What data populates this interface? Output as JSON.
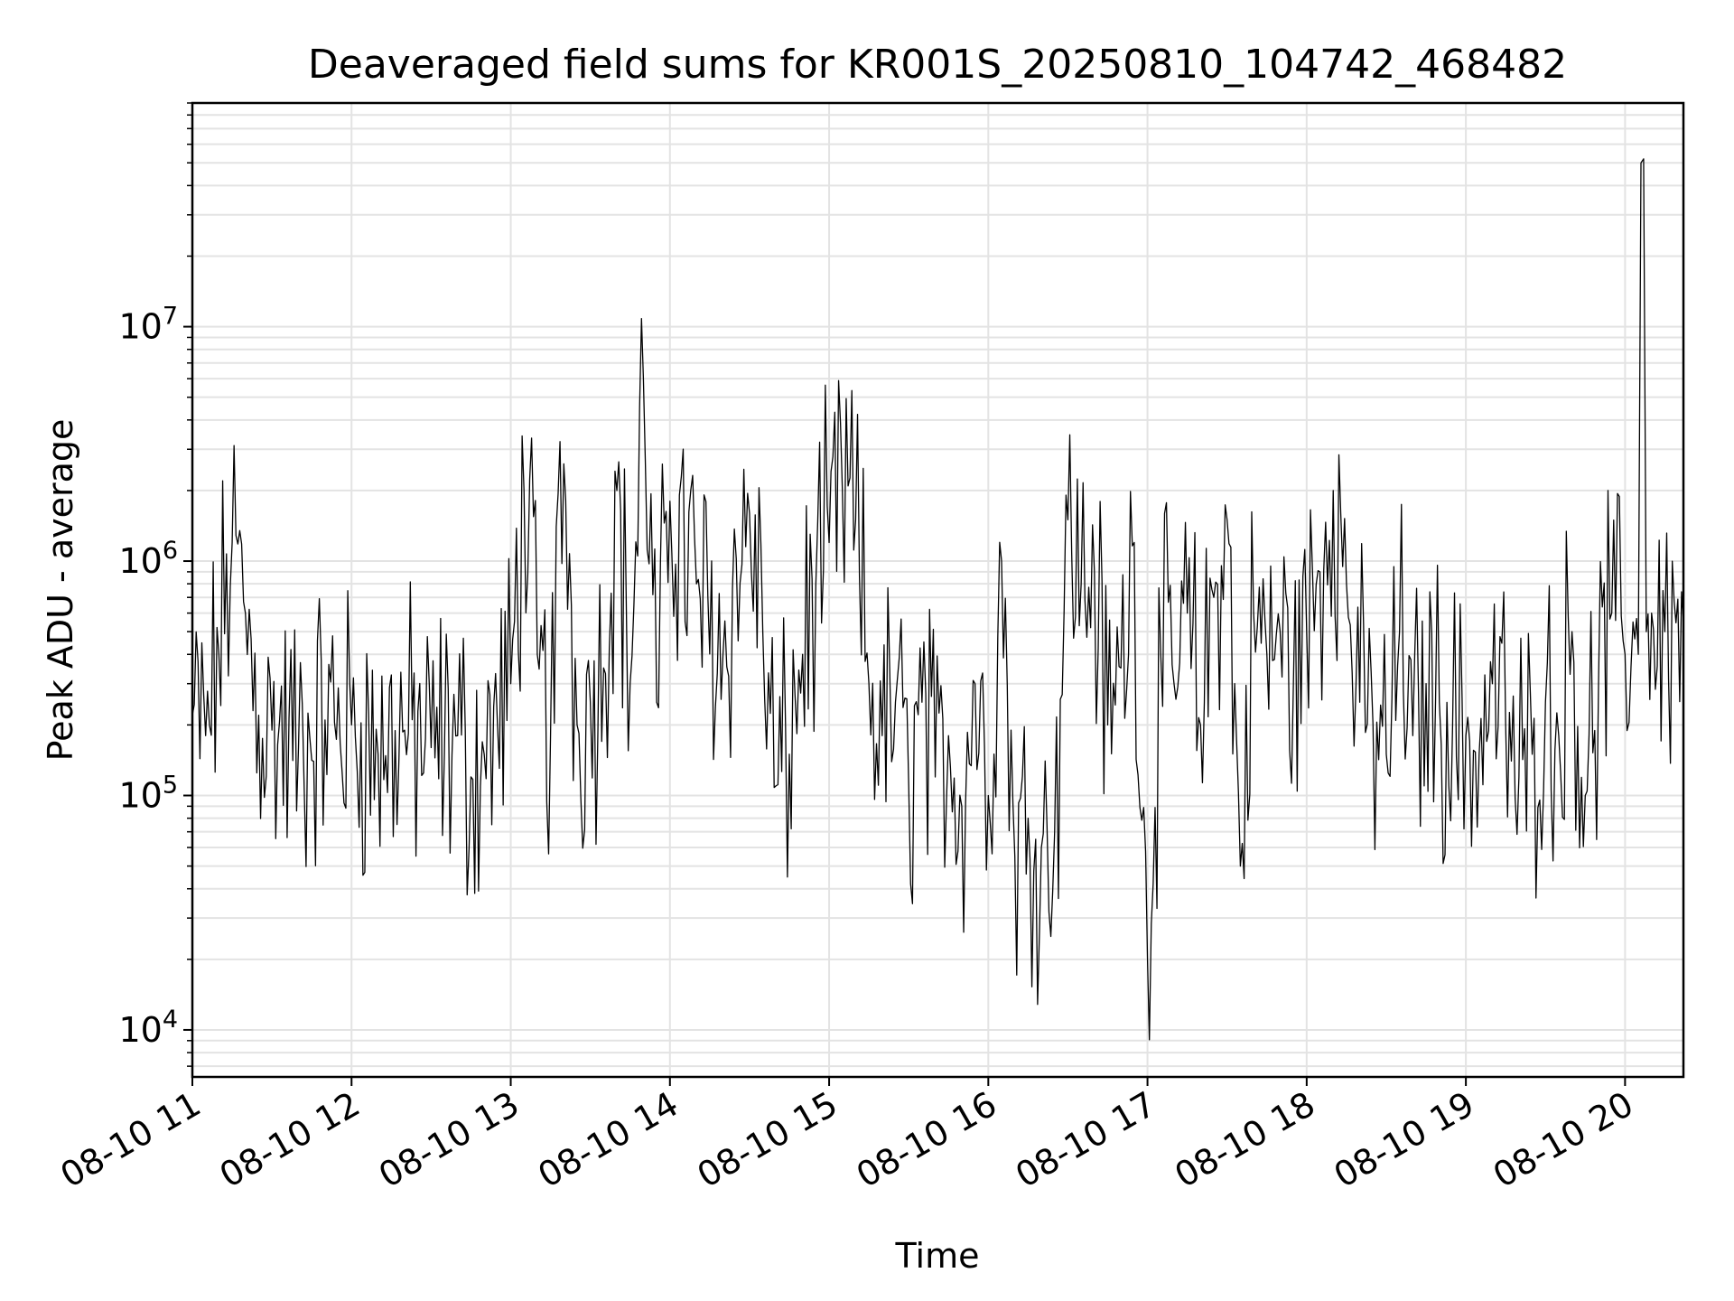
{
  "chart_data": {
    "type": "line",
    "title": "Deaveraged field sums for KR001S_20250810_104742_468482",
    "xlabel": "Time",
    "ylabel": "Peak ADU - average",
    "yscale": "log",
    "ylim": [
      6300,
      90000000
    ],
    "xlim": [
      "2025-08-10 11:00",
      "2025-08-10 20:22"
    ],
    "x_ticks": [
      "08-10 11",
      "08-10 12",
      "08-10 13",
      "08-10 14",
      "08-10 15",
      "08-10 16",
      "08-10 17",
      "08-10 18",
      "08-10 19",
      "08-10 20"
    ],
    "y_ticks": [
      {
        "base": "10",
        "exp": "4",
        "value": 10000
      },
      {
        "base": "10",
        "exp": "5",
        "value": 100000
      },
      {
        "base": "10",
        "exp": "6",
        "value": 1000000
      },
      {
        "base": "10",
        "exp": "7",
        "value": 10000000
      }
    ],
    "grid": true,
    "series": [
      {
        "color": "#000000",
        "x": [
          "2025-08-10 11:00",
          "2025-08-10 11:05",
          "2025-08-10 11:10",
          "2025-08-10 11:15",
          "2025-08-10 11:20",
          "2025-08-10 11:25",
          "2025-08-10 11:30",
          "2025-08-10 11:40",
          "2025-08-10 11:50",
          "2025-08-10 12:00",
          "2025-08-10 12:10",
          "2025-08-10 12:20",
          "2025-08-10 12:30",
          "2025-08-10 12:40",
          "2025-08-10 12:45",
          "2025-08-10 12:50",
          "2025-08-10 12:55",
          "2025-08-10 13:00",
          "2025-08-10 13:05",
          "2025-08-10 13:10",
          "2025-08-10 13:15",
          "2025-08-10 13:20",
          "2025-08-10 13:25",
          "2025-08-10 13:30",
          "2025-08-10 13:35",
          "2025-08-10 13:40",
          "2025-08-10 13:45",
          "2025-08-10 13:50",
          "2025-08-10 13:55",
          "2025-08-10 14:00",
          "2025-08-10 14:10",
          "2025-08-10 14:20",
          "2025-08-10 14:30",
          "2025-08-10 14:35",
          "2025-08-10 14:40",
          "2025-08-10 14:45",
          "2025-08-10 14:50",
          "2025-08-10 14:55",
          "2025-08-10 15:00",
          "2025-08-10 15:05",
          "2025-08-10 15:10",
          "2025-08-10 15:15",
          "2025-08-10 15:20",
          "2025-08-10 15:25",
          "2025-08-10 15:30",
          "2025-08-10 15:35",
          "2025-08-10 15:40",
          "2025-08-10 15:45",
          "2025-08-10 15:50",
          "2025-08-10 15:55",
          "2025-08-10 16:00",
          "2025-08-10 16:05",
          "2025-08-10 16:10",
          "2025-08-10 16:15",
          "2025-08-10 16:20",
          "2025-08-10 16:25",
          "2025-08-10 16:30",
          "2025-08-10 16:35",
          "2025-08-10 16:40",
          "2025-08-10 16:45",
          "2025-08-10 16:50",
          "2025-08-10 16:55",
          "2025-08-10 17:00",
          "2025-08-10 17:05",
          "2025-08-10 17:10",
          "2025-08-10 17:15",
          "2025-08-10 17:20",
          "2025-08-10 17:25",
          "2025-08-10 17:30",
          "2025-08-10 17:35",
          "2025-08-10 17:40",
          "2025-08-10 17:45",
          "2025-08-10 17:50",
          "2025-08-10 17:55",
          "2025-08-10 18:00",
          "2025-08-10 18:05",
          "2025-08-10 18:10",
          "2025-08-10 18:15",
          "2025-08-10 18:20",
          "2025-08-10 18:25",
          "2025-08-10 18:30",
          "2025-08-10 18:35",
          "2025-08-10 18:40",
          "2025-08-10 18:45",
          "2025-08-10 18:50",
          "2025-08-10 18:55",
          "2025-08-10 19:00",
          "2025-08-10 19:05",
          "2025-08-10 19:10",
          "2025-08-10 19:15",
          "2025-08-10 19:20",
          "2025-08-10 19:25",
          "2025-08-10 19:30",
          "2025-08-10 19:35",
          "2025-08-10 19:40",
          "2025-08-10 19:45",
          "2025-08-10 19:50",
          "2025-08-10 19:55",
          "2025-08-10 20:00",
          "2025-08-10 20:03",
          "2025-08-10 20:05",
          "2025-08-10 20:06",
          "2025-08-10 20:07",
          "2025-08-10 20:08",
          "2025-08-10 20:10",
          "2025-08-10 20:15",
          "2025-08-10 20:22"
        ],
        "values": [
          220000,
          180000,
          400000,
          1200000,
          600000,
          220000,
          190000,
          160000,
          210000,
          200000,
          150000,
          190000,
          160000,
          180000,
          120000,
          150000,
          200000,
          300000,
          2000000,
          400000,
          180000,
          2600000,
          200000,
          250000,
          350000,
          2000000,
          300000,
          6000000,
          250000,
          1800000,
          800000,
          400000,
          1600000,
          500000,
          110000,
          150000,
          400000,
          800000,
          1200000,
          2000000,
          1500000,
          300000,
          180000,
          250000,
          110000,
          250000,
          120000,
          180000,
          90000,
          300000,
          100000,
          1000000,
          55000,
          80000,
          60000,
          70000,
          1500000,
          800000,
          900000,
          200000,
          350000,
          1200000,
          20000,
          400000,
          300000,
          600000,
          200000,
          700000,
          1500000,
          50000,
          600000,
          400000,
          500000,
          300000,
          500000,
          900000,
          2000000,
          800000,
          250000,
          200000,
          150000,
          500000,
          180000,
          300000,
          250000,
          200000,
          180000,
          150000,
          300000,
          200000,
          120000,
          150000,
          250000,
          180000,
          500000,
          100000,
          300000,
          600000,
          400000,
          550000,
          400000,
          50000000,
          52000000,
          500000,
          600000,
          500000,
          550000
        ]
      }
    ]
  }
}
